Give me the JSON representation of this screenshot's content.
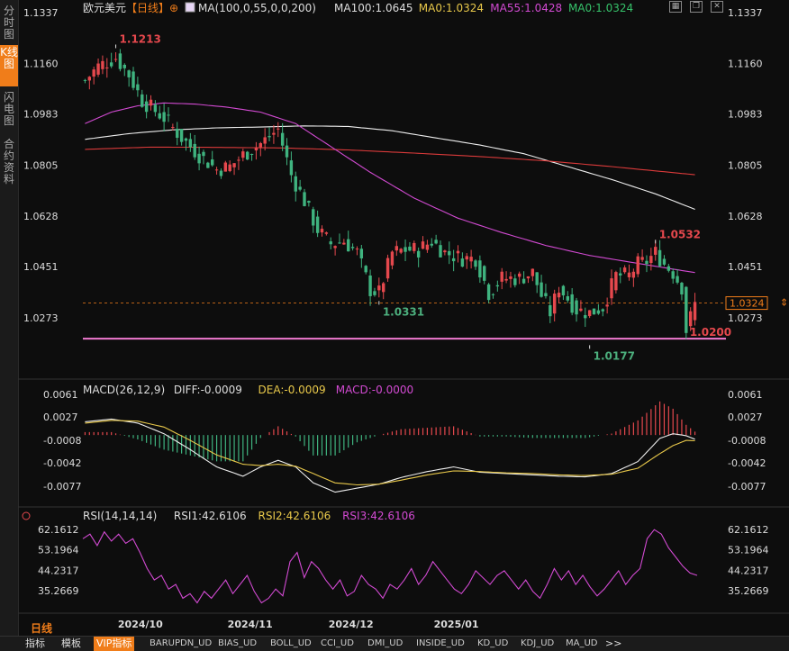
{
  "side_tabs": [
    "分时图",
    "K线图",
    "闪电图",
    "合约资料"
  ],
  "header": {
    "symbol": "欧元美元",
    "period": "【日线】",
    "plus": "⊕",
    "ma_items": [
      {
        "text": "MA(100,0,55,0,0,200)",
        "color": "#dddddd"
      },
      {
        "text": "MA100:1.0645",
        "color": "#dddddd"
      },
      {
        "text": "MA0:1.0324",
        "color": "#e8c84a"
      },
      {
        "text": "MA55:1.0428",
        "color": "#d24ad2"
      },
      {
        "text": "MA0:1.0324",
        "color": "#36c26a"
      }
    ]
  },
  "price_axis": {
    "min": 1.015,
    "max": 1.1337,
    "ticks": [
      "1.1337",
      "1.1160",
      "1.0983",
      "1.0805",
      "1.0628",
      "1.0451",
      "1.0273"
    ]
  },
  "current_price": {
    "value": 1.0324,
    "label": "1.0324"
  },
  "support_line": {
    "value": 1.02
  },
  "annotations": [
    {
      "label": "1.1213",
      "value": 1.1213,
      "bar": 7,
      "pos": "above",
      "color": "#e5484d"
    },
    {
      "label": "1.0331",
      "value": 1.0331,
      "bar": 67,
      "pos": "below",
      "color": "#4caf7d"
    },
    {
      "label": "1.0177",
      "value": 1.0177,
      "bar": 115,
      "pos": "below",
      "color": "#4caf7d"
    },
    {
      "label": "1.0532",
      "value": 1.0532,
      "bar": 130,
      "pos": "above",
      "color": "#e5484d"
    },
    {
      "label": "1.0200",
      "value": 1.02,
      "bar": 137,
      "pos": "right",
      "color": "#e5484d"
    }
  ],
  "moving_averages": {
    "ma100": {
      "color": "#eeeeee",
      "knots": [
        [
          0,
          1.0895
        ],
        [
          10,
          1.0915
        ],
        [
          20,
          1.0928
        ],
        [
          30,
          1.0935
        ],
        [
          40,
          1.0938
        ],
        [
          50,
          1.0942
        ],
        [
          60,
          1.094
        ],
        [
          70,
          1.0925
        ],
        [
          80,
          1.09
        ],
        [
          90,
          1.0875
        ],
        [
          100,
          1.0845
        ],
        [
          110,
          1.08
        ],
        [
          120,
          1.0755
        ],
        [
          130,
          1.0705
        ],
        [
          140,
          1.0645
        ]
      ]
    },
    "ma55": {
      "color": "#d24ad2",
      "knots": [
        [
          0,
          1.095
        ],
        [
          6,
          1.099
        ],
        [
          12,
          1.1012
        ],
        [
          18,
          1.1022
        ],
        [
          25,
          1.1018
        ],
        [
          32,
          1.1008
        ],
        [
          40,
          1.099
        ],
        [
          48,
          1.095
        ],
        [
          55,
          1.088
        ],
        [
          65,
          1.078
        ],
        [
          75,
          1.069
        ],
        [
          85,
          1.062
        ],
        [
          95,
          1.057
        ],
        [
          105,
          1.0525
        ],
        [
          115,
          1.049
        ],
        [
          125,
          1.0465
        ],
        [
          135,
          1.044
        ],
        [
          140,
          1.0428
        ]
      ]
    },
    "ma200": {
      "color": "#d93a3a",
      "knots": [
        [
          0,
          1.086
        ],
        [
          15,
          1.0868
        ],
        [
          30,
          1.0867
        ],
        [
          45,
          1.0865
        ],
        [
          60,
          1.0858
        ],
        [
          75,
          1.0847
        ],
        [
          90,
          1.0835
        ],
        [
          105,
          1.082
        ],
        [
          120,
          1.08
        ],
        [
          130,
          1.0785
        ],
        [
          140,
          1.077
        ]
      ]
    }
  },
  "price_knots": [
    [
      0,
      1.11
    ],
    [
      3,
      1.115
    ],
    [
      7,
      1.118
    ],
    [
      10,
      1.112
    ],
    [
      13,
      1.103
    ],
    [
      18,
      1.097
    ],
    [
      22,
      1.09
    ],
    [
      26,
      1.084
    ],
    [
      30,
      1.079
    ],
    [
      33,
      1.08
    ],
    [
      36,
      1.084
    ],
    [
      40,
      1.088
    ],
    [
      44,
      1.093
    ],
    [
      47,
      1.077
    ],
    [
      50,
      1.068
    ],
    [
      53,
      1.058
    ],
    [
      56,
      1.053
    ],
    [
      59,
      1.054
    ],
    [
      62,
      1.05
    ],
    [
      65,
      1.037
    ],
    [
      67,
      1.036
    ],
    [
      70,
      1.05
    ],
    [
      73,
      1.051
    ],
    [
      76,
      1.051
    ],
    [
      79,
      1.054
    ],
    [
      82,
      1.05
    ],
    [
      86,
      1.048
    ],
    [
      89,
      1.048
    ],
    [
      92,
      1.036
    ],
    [
      95,
      1.041
    ],
    [
      99,
      1.041
    ],
    [
      102,
      1.043
    ],
    [
      104,
      1.035
    ],
    [
      106,
      1.029
    ],
    [
      108,
      1.038
    ],
    [
      110,
      1.034
    ],
    [
      112,
      1.03
    ],
    [
      115,
      1.029
    ],
    [
      118,
      1.031
    ],
    [
      121,
      1.042
    ],
    [
      124,
      1.042
    ],
    [
      126,
      1.046
    ],
    [
      128,
      1.047
    ],
    [
      130,
      1.05
    ],
    [
      132,
      1.046
    ],
    [
      134,
      1.043
    ],
    [
      136,
      1.038
    ],
    [
      137,
      1.023
    ],
    [
      139,
      1.032
    ]
  ],
  "candles_count": 140,
  "x_axis": {
    "labels": [
      {
        "text": "2024/10",
        "bar": 12
      },
      {
        "text": "2024/11",
        "bar": 37
      },
      {
        "text": "2024/12",
        "bar": 60
      },
      {
        "text": "2025/01",
        "bar": 84
      }
    ]
  },
  "macd": {
    "title": "MACD(26,12,9)",
    "items": [
      {
        "text": "DIFF:-0.0009",
        "color": "#dddddd"
      },
      {
        "text": "DEA:-0.0009",
        "color": "#e8c84a"
      },
      {
        "text": "MACD:-0.0000",
        "color": "#d24ad2"
      }
    ],
    "ticks": [
      "0.0061",
      "0.0027",
      "-0.0008",
      "-0.0042",
      "-0.0077"
    ],
    "range": [
      -0.0092,
      0.0068
    ],
    "diff_knots": [
      [
        0,
        0.002
      ],
      [
        6,
        0.0024
      ],
      [
        12,
        0.0018
      ],
      [
        18,
        0.0002
      ],
      [
        24,
        -0.0022
      ],
      [
        30,
        -0.0048
      ],
      [
        36,
        -0.0062
      ],
      [
        40,
        -0.0048
      ],
      [
        44,
        -0.0038
      ],
      [
        48,
        -0.0048
      ],
      [
        52,
        -0.0072
      ],
      [
        57,
        -0.0086
      ],
      [
        62,
        -0.008
      ],
      [
        67,
        -0.0074
      ],
      [
        72,
        -0.0064
      ],
      [
        78,
        -0.0055
      ],
      [
        84,
        -0.0048
      ],
      [
        90,
        -0.0056
      ],
      [
        96,
        -0.0058
      ],
      [
        102,
        -0.006
      ],
      [
        108,
        -0.0062
      ],
      [
        114,
        -0.0063
      ],
      [
        120,
        -0.0058
      ],
      [
        126,
        -0.004
      ],
      [
        131,
        -0.0005
      ],
      [
        134,
        0.0002
      ],
      [
        137,
        -0.0001
      ],
      [
        140,
        -0.0009
      ]
    ],
    "dea_knots": [
      [
        0,
        0.0018
      ],
      [
        6,
        0.0022
      ],
      [
        12,
        0.0021
      ],
      [
        18,
        0.0012
      ],
      [
        24,
        -0.0008
      ],
      [
        30,
        -0.003
      ],
      [
        36,
        -0.0044
      ],
      [
        40,
        -0.0046
      ],
      [
        44,
        -0.0044
      ],
      [
        48,
        -0.0047
      ],
      [
        52,
        -0.0058
      ],
      [
        57,
        -0.0072
      ],
      [
        62,
        -0.0075
      ],
      [
        67,
        -0.0074
      ],
      [
        72,
        -0.0068
      ],
      [
        78,
        -0.006
      ],
      [
        84,
        -0.0054
      ],
      [
        90,
        -0.0055
      ],
      [
        96,
        -0.0057
      ],
      [
        102,
        -0.0058
      ],
      [
        108,
        -0.006
      ],
      [
        114,
        -0.0061
      ],
      [
        120,
        -0.0059
      ],
      [
        126,
        -0.005
      ],
      [
        131,
        -0.0028
      ],
      [
        134,
        -0.0016
      ],
      [
        137,
        -0.0008
      ],
      [
        140,
        -0.0009
      ]
    ]
  },
  "rsi": {
    "title": "RSI(14,14,14)",
    "items": [
      {
        "text": "RSI1:42.6106",
        "color": "#dddddd"
      },
      {
        "text": "RSI2:42.6106",
        "color": "#e8c84a"
      },
      {
        "text": "RSI3:42.6106",
        "color": "#d24ad2"
      }
    ],
    "ticks": [
      "62.1612",
      "53.1964",
      "44.2317",
      "35.2669"
    ],
    "range": [
      29,
      66
    ],
    "values": [
      58,
      60,
      55,
      61,
      57,
      60,
      56,
      58,
      52,
      45,
      40,
      42,
      36,
      38,
      32,
      34,
      30,
      35,
      32,
      36,
      40,
      34,
      38,
      42,
      35,
      30,
      32,
      36,
      33,
      48,
      52,
      41,
      48,
      45,
      40,
      36,
      40,
      33,
      35,
      42,
      38,
      36,
      32,
      38,
      36,
      40,
      45,
      38,
      42,
      48,
      44,
      40,
      36,
      34,
      38,
      44,
      41,
      38,
      42,
      44,
      40,
      36,
      40,
      35,
      32,
      38,
      45,
      40,
      44,
      38,
      42,
      37,
      33,
      36,
      40,
      44,
      38,
      42,
      45,
      58,
      62,
      60,
      54,
      50,
      46,
      43,
      42
    ]
  },
  "bottom_tabs": [
    "指标",
    "模板",
    "VIP指标",
    "BARUPDN_UD",
    "BIAS_UD",
    "BOLL_UD",
    "CCI_UD",
    "DMI_UD",
    "INSIDE_UD",
    "KD_UD",
    "KDJ_UD",
    "MA_UD"
  ],
  "period_label": "日线",
  "colors": {
    "up": "#e5484d",
    "down": "#3fb37f",
    "bg": "#0d0d0d",
    "accent": "#f07d1a"
  }
}
